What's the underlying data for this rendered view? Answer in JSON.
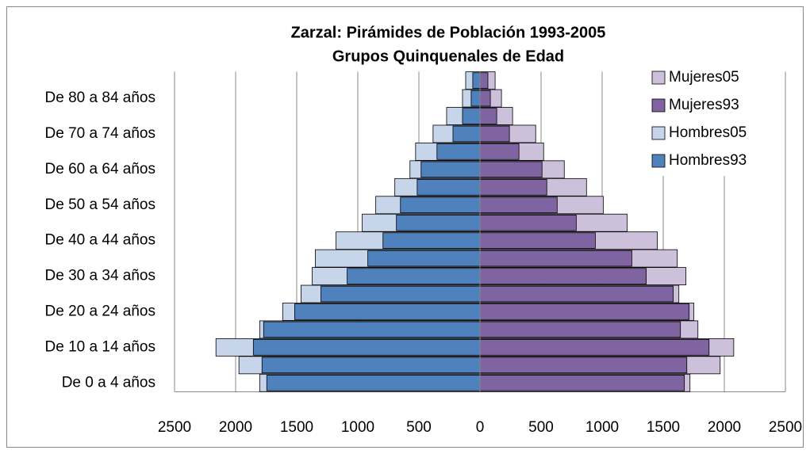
{
  "chart_data": {
    "type": "bar",
    "orientation": "horizontal",
    "overlap": true,
    "title": "Zarzal: Pirámides de Población 1993-2005",
    "subtitle": "Grupos Quinquenales de Edad",
    "categories": [
      "De 0 a 4 años",
      null,
      "De 10 a 14 años",
      null,
      "De 20 a 24 años",
      null,
      "De 30 a 34 años",
      null,
      "De 40 a 44 años",
      null,
      "De 50 a 54 años",
      null,
      "De 60 a 64 años",
      null,
      "De 70 a 74 años",
      null,
      "De 80 a 84 años",
      null
    ],
    "series": [
      {
        "name": "Mujeres05",
        "color": "#ccc0da",
        "values": [
          1719,
          1966,
          2077,
          1784,
          1751,
          1628,
          1686,
          1615,
          1452,
          1204,
          1009,
          872,
          690,
          521,
          456,
          267,
          176,
          124
        ]
      },
      {
        "name": "Mujeres93",
        "color": "#8064a2",
        "values": [
          1673,
          1693,
          1875,
          1641,
          1712,
          1582,
          1361,
          1243,
          944,
          788,
          632,
          547,
          508,
          319,
          241,
          137,
          85,
          65
        ]
      },
      {
        "name": "Hombres05",
        "color": "#c6d5ea",
        "values": [
          -1803,
          -1973,
          -2161,
          -1803,
          -1615,
          -1465,
          -1374,
          -1348,
          -1178,
          -964,
          -853,
          -697,
          -573,
          -527,
          -384,
          -273,
          -143,
          -117
        ]
      },
      {
        "name": "Hombres93",
        "color": "#4f81bd",
        "values": [
          -1745,
          -1784,
          -1855,
          -1771,
          -1517,
          -1302,
          -1087,
          -918,
          -794,
          -684,
          -651,
          -514,
          -482,
          -352,
          -221,
          -143,
          -72,
          -59
        ]
      }
    ],
    "xlim": [
      -2500,
      2500
    ],
    "xticks": [
      {
        "value": -2500,
        "label": "2500"
      },
      {
        "value": -2000,
        "label": "2000"
      },
      {
        "value": -1500,
        "label": "1500"
      },
      {
        "value": -1000,
        "label": "1000"
      },
      {
        "value": -500,
        "label": "500"
      },
      0,
      500,
      1000,
      1500,
      2000,
      2500
    ],
    "grid": true,
    "legend": "top-right"
  }
}
